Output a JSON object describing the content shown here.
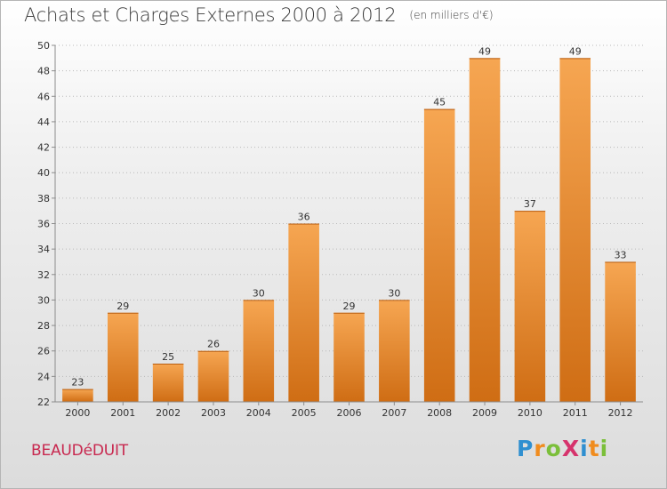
{
  "header": {
    "title": "Achats et Charges Externes 2000 à 2012",
    "unit": "(en milliers d'€)"
  },
  "footer": {
    "commune": "BEAUDéDUIT",
    "logo": {
      "text": "ProXiti",
      "letters": [
        {
          "ch": "P",
          "color": "#2f8fd0"
        },
        {
          "ch": "r",
          "color": "#f08c1e"
        },
        {
          "ch": "o",
          "color": "#7bbf3a"
        },
        {
          "ch": "X",
          "color": "#d6336c"
        },
        {
          "ch": "i",
          "color": "#2f8fd0"
        },
        {
          "ch": "t",
          "color": "#f08c1e"
        },
        {
          "ch": "i",
          "color": "#7bbf3a"
        }
      ]
    }
  },
  "chart_data": {
    "type": "bar",
    "title": "Achats et Charges Externes 2000 à 2012",
    "subtitle": "(en milliers d'€)",
    "xlabel": "",
    "ylabel": "",
    "categories": [
      "2000",
      "2001",
      "2002",
      "2003",
      "2004",
      "2005",
      "2006",
      "2007",
      "2008",
      "2009",
      "2010",
      "2011",
      "2012"
    ],
    "values": [
      23,
      29,
      25,
      26,
      30,
      36,
      29,
      30,
      45,
      49,
      37,
      49,
      33
    ],
    "ylim": [
      22,
      50
    ],
    "yticks": [
      22,
      24,
      26,
      28,
      30,
      32,
      34,
      36,
      38,
      40,
      42,
      44,
      46,
      48,
      50
    ],
    "grid": "horizontal-dotted",
    "colors": {
      "bar_light": "#f6a652",
      "bar_dark": "#cf6d14",
      "grid": "#b9b9b9",
      "axis": "#8c8c8c"
    }
  }
}
